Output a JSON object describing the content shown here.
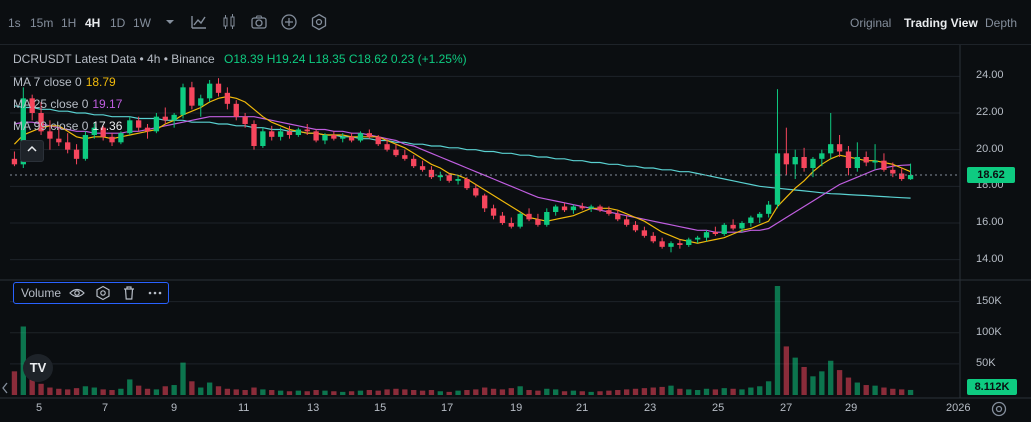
{
  "toolbar": {
    "timeframes": [
      {
        "label": "1s",
        "active": false
      },
      {
        "label": "15m",
        "active": false
      },
      {
        "label": "1H",
        "active": false
      },
      {
        "label": "4H",
        "active": true
      },
      {
        "label": "1D",
        "active": false
      },
      {
        "label": "1W",
        "active": false
      }
    ],
    "icons": [
      "chevron-down-icon",
      "indicator-icon",
      "candles-icon",
      "camera-icon",
      "add-icon",
      "settings-icon"
    ],
    "views": [
      {
        "label": "Original",
        "active": false
      },
      {
        "label": "Trading View",
        "active": true
      },
      {
        "label": "Depth",
        "active": false
      }
    ]
  },
  "legend": {
    "symbol": "DCRUSDT Latest Data",
    "interval": "4h",
    "exchange": "Binance",
    "ohlc": {
      "o_label": "O",
      "o": "18.39",
      "h_label": "H",
      "h": "19.24",
      "l_label": "L",
      "l": "18.35",
      "c_label": "C",
      "c": "18.62",
      "change": "0.23",
      "change_pct": "(+1.25%)"
    },
    "ma7": {
      "label": "MA 7 close 0",
      "value": "18.79",
      "color": "#f0b90b"
    },
    "ma25": {
      "label": "MA 25 close 0",
      "value": "19.17",
      "color": "#c05ee0"
    },
    "ma99": {
      "label": "MA 99 close 0",
      "value": "17.36",
      "color": "#5ad1d1"
    }
  },
  "volume_panel": {
    "label": "Volume"
  },
  "price_axis": {
    "ticks": [
      "24.00",
      "22.00",
      "20.00",
      "18.00",
      "16.00",
      "14.00"
    ],
    "current": "18.62"
  },
  "volume_axis": {
    "ticks": [
      "150K",
      "100K",
      "50K"
    ],
    "current": "8.112K"
  },
  "time_axis": {
    "ticks": [
      "5",
      "7",
      "9",
      "11",
      "13",
      "15",
      "17",
      "19",
      "21",
      "23",
      "25",
      "27",
      "29",
      "2026"
    ]
  },
  "logo": {
    "text": "TV"
  },
  "colors": {
    "up": "#0ecb81",
    "down": "#f6465d",
    "bg": "#0b0e11",
    "grid": "#1e2329"
  },
  "chart_data": {
    "type": "candlestick",
    "price_range": [
      13,
      25
    ],
    "volume_range": [
      0,
      175000
    ],
    "candles": [
      [
        19.5,
        19.9,
        19.1,
        19.2
      ],
      [
        19.2,
        23.4,
        19.0,
        22.8
      ],
      [
        22.8,
        23.0,
        21.6,
        22.0
      ],
      [
        22.0,
        22.6,
        20.8,
        21.0
      ],
      [
        21.0,
        21.6,
        20.0,
        20.6
      ],
      [
        20.6,
        21.2,
        20.2,
        20.4
      ],
      [
        20.4,
        20.9,
        19.8,
        20.0
      ],
      [
        20.0,
        20.3,
        19.2,
        19.5
      ],
      [
        19.5,
        21.0,
        19.4,
        20.8
      ],
      [
        20.8,
        21.5,
        20.6,
        21.2
      ],
      [
        21.2,
        21.3,
        20.5,
        20.7
      ],
      [
        20.7,
        20.9,
        20.2,
        20.4
      ],
      [
        20.4,
        21.0,
        20.3,
        20.9
      ],
      [
        20.9,
        21.8,
        20.8,
        21.6
      ],
      [
        21.6,
        21.8,
        21.0,
        21.2
      ],
      [
        21.2,
        21.4,
        20.6,
        21.0
      ],
      [
        21.0,
        22.0,
        20.9,
        21.8
      ],
      [
        21.8,
        22.3,
        21.4,
        21.6
      ],
      [
        21.6,
        22.0,
        21.2,
        21.9
      ],
      [
        21.9,
        23.6,
        21.7,
        23.4
      ],
      [
        23.4,
        23.7,
        22.2,
        22.4
      ],
      [
        22.4,
        23.0,
        21.8,
        22.8
      ],
      [
        22.8,
        23.8,
        22.6,
        23.6
      ],
      [
        23.6,
        23.9,
        22.9,
        23.1
      ],
      [
        23.1,
        23.4,
        22.2,
        22.5
      ],
      [
        22.5,
        22.7,
        21.6,
        21.8
      ],
      [
        21.8,
        22.0,
        21.2,
        21.4
      ],
      [
        21.4,
        21.6,
        20.0,
        20.2
      ],
      [
        20.2,
        21.2,
        20.1,
        21.0
      ],
      [
        21.0,
        21.3,
        20.5,
        20.7
      ],
      [
        20.7,
        21.2,
        20.5,
        21.0
      ],
      [
        21.0,
        21.3,
        20.6,
        20.8
      ],
      [
        20.8,
        21.2,
        20.7,
        21.1
      ],
      [
        21.1,
        21.4,
        20.8,
        21.0
      ],
      [
        21.0,
        21.1,
        20.4,
        20.5
      ],
      [
        20.5,
        20.9,
        20.3,
        20.8
      ],
      [
        20.8,
        21.0,
        20.5,
        20.6
      ],
      [
        20.6,
        20.9,
        20.4,
        20.7
      ],
      [
        20.7,
        20.9,
        20.4,
        20.5
      ],
      [
        20.5,
        21.0,
        20.4,
        20.9
      ],
      [
        20.9,
        21.1,
        20.6,
        20.7
      ],
      [
        20.7,
        20.8,
        20.2,
        20.3
      ],
      [
        20.3,
        20.6,
        19.9,
        20.0
      ],
      [
        20.0,
        20.3,
        19.6,
        19.7
      ],
      [
        19.7,
        20.0,
        19.4,
        19.5
      ],
      [
        19.5,
        19.7,
        19.0,
        19.1
      ],
      [
        19.1,
        19.4,
        18.8,
        18.9
      ],
      [
        18.9,
        19.1,
        18.4,
        18.5
      ],
      [
        18.5,
        18.8,
        18.3,
        18.6
      ],
      [
        18.6,
        18.7,
        18.2,
        18.3
      ],
      [
        18.3,
        18.6,
        18.1,
        18.4
      ],
      [
        18.4,
        18.5,
        17.8,
        17.9
      ],
      [
        17.9,
        18.1,
        17.4,
        17.5
      ],
      [
        17.5,
        17.6,
        16.6,
        16.8
      ],
      [
        16.8,
        17.0,
        16.2,
        16.4
      ],
      [
        16.4,
        16.6,
        15.9,
        16.0
      ],
      [
        16.0,
        16.3,
        15.7,
        15.8
      ],
      [
        15.8,
        16.6,
        15.7,
        16.5
      ],
      [
        16.5,
        16.8,
        16.1,
        16.2
      ],
      [
        16.2,
        16.5,
        15.8,
        15.9
      ],
      [
        15.9,
        16.8,
        15.8,
        16.6
      ],
      [
        16.6,
        17.0,
        16.4,
        16.9
      ],
      [
        16.9,
        17.1,
        16.6,
        16.7
      ],
      [
        16.7,
        17.0,
        16.5,
        16.9
      ],
      [
        16.9,
        17.1,
        16.7,
        16.8
      ],
      [
        16.8,
        17.0,
        16.6,
        16.9
      ],
      [
        16.9,
        17.0,
        16.6,
        16.7
      ],
      [
        16.7,
        16.9,
        16.4,
        16.5
      ],
      [
        16.5,
        16.7,
        16.1,
        16.2
      ],
      [
        16.2,
        16.4,
        15.8,
        15.9
      ],
      [
        15.9,
        16.1,
        15.5,
        15.6
      ],
      [
        15.6,
        15.8,
        15.2,
        15.3
      ],
      [
        15.3,
        15.5,
        14.9,
        15.0
      ],
      [
        15.0,
        15.2,
        14.6,
        14.7
      ],
      [
        14.7,
        15.0,
        14.4,
        14.9
      ],
      [
        14.9,
        15.1,
        14.6,
        14.8
      ],
      [
        14.8,
        15.2,
        14.7,
        15.1
      ],
      [
        15.1,
        15.3,
        14.9,
        15.2
      ],
      [
        15.2,
        15.6,
        15.0,
        15.5
      ],
      [
        15.5,
        15.8,
        15.3,
        15.4
      ],
      [
        15.4,
        16.0,
        15.3,
        15.9
      ],
      [
        15.9,
        16.2,
        15.6,
        15.7
      ],
      [
        15.7,
        16.1,
        15.5,
        16.0
      ],
      [
        16.0,
        16.4,
        15.8,
        16.3
      ],
      [
        16.3,
        16.6,
        16.0,
        16.5
      ],
      [
        16.5,
        17.2,
        16.3,
        17.0
      ],
      [
        17.0,
        23.3,
        16.8,
        19.8
      ],
      [
        19.8,
        21.2,
        18.6,
        19.2
      ],
      [
        19.2,
        20.0,
        18.4,
        19.6
      ],
      [
        19.6,
        20.1,
        18.8,
        19.0
      ],
      [
        19.0,
        19.6,
        18.5,
        19.5
      ],
      [
        19.5,
        20.0,
        19.1,
        19.8
      ],
      [
        19.8,
        22.0,
        19.5,
        20.3
      ],
      [
        20.3,
        20.8,
        19.6,
        19.9
      ],
      [
        19.9,
        20.2,
        18.6,
        19.0
      ],
      [
        19.0,
        20.4,
        18.8,
        19.6
      ],
      [
        19.6,
        19.9,
        19.1,
        19.3
      ],
      [
        19.3,
        20.3,
        18.9,
        19.4
      ],
      [
        19.4,
        19.8,
        18.8,
        18.9
      ],
      [
        18.9,
        19.3,
        18.5,
        18.7
      ],
      [
        18.7,
        19.0,
        18.3,
        18.4
      ],
      [
        18.39,
        19.24,
        18.35,
        18.62
      ]
    ],
    "volumes": [
      38000,
      110000,
      25000,
      18000,
      12000,
      10000,
      9000,
      11000,
      14000,
      12000,
      9000,
      8000,
      10000,
      25000,
      15000,
      10000,
      9000,
      14000,
      16000,
      52000,
      22000,
      12000,
      20000,
      14000,
      10000,
      9000,
      8000,
      12000,
      9000,
      8000,
      7000,
      6000,
      7000,
      6000,
      8000,
      7000,
      6000,
      5000,
      6000,
      7000,
      8000,
      7000,
      9000,
      10000,
      9000,
      8000,
      7000,
      8000,
      6000,
      5000,
      7000,
      8000,
      9000,
      12000,
      10000,
      9000,
      11000,
      14000,
      8000,
      7000,
      10000,
      9000,
      6000,
      7000,
      6000,
      5000,
      6000,
      7000,
      8000,
      9000,
      10000,
      11000,
      12000,
      13000,
      15000,
      10000,
      9000,
      8000,
      10000,
      9000,
      11000,
      10000,
      9000,
      12000,
      14000,
      22000,
      175000,
      78000,
      60000,
      45000,
      30000,
      38000,
      55000,
      40000,
      28000,
      20000,
      16000,
      15000,
      12000,
      10000,
      9000,
      8112
    ],
    "ma7": [
      20.3,
      20.8,
      21.0,
      21.2,
      21.3,
      21.3,
      21.0,
      20.7,
      20.6,
      20.7,
      20.7,
      20.6,
      20.7,
      20.8,
      20.9,
      21.0,
      21.1,
      21.4,
      21.6,
      21.9,
      22.1,
      22.3,
      22.6,
      22.8,
      22.9,
      22.8,
      22.6,
      22.2,
      21.8,
      21.5,
      21.3,
      21.1,
      21.0,
      20.9,
      20.9,
      20.8,
      20.8,
      20.8,
      20.7,
      20.7,
      20.7,
      20.7,
      20.5,
      20.3,
      20.1,
      19.8,
      19.5,
      19.2,
      19.0,
      18.7,
      18.6,
      18.4,
      18.1,
      17.8,
      17.5,
      17.2,
      16.9,
      16.6,
      16.3,
      16.2,
      16.1,
      16.2,
      16.3,
      16.4,
      16.6,
      16.8,
      16.8,
      16.8,
      16.7,
      16.5,
      16.3,
      16.1,
      15.8,
      15.5,
      15.3,
      15.1,
      15.0,
      14.9,
      15.0,
      15.1,
      15.2,
      15.4,
      15.6,
      15.7,
      15.9,
      16.1,
      16.9,
      17.4,
      17.9,
      18.3,
      18.8,
      19.2,
      19.5,
      19.7,
      19.6,
      19.5,
      19.4,
      19.4,
      19.3,
      19.2,
      19.0,
      18.8
    ],
    "ma25": [
      21.4,
      21.5,
      21.5,
      21.4,
      21.3,
      21.2,
      21.1,
      21.0,
      21.0,
      20.9,
      20.9,
      20.9,
      20.9,
      21.0,
      21.0,
      21.1,
      21.2,
      21.3,
      21.4,
      21.5,
      21.6,
      21.7,
      21.8,
      21.8,
      21.8,
      21.8,
      21.8,
      21.8,
      21.7,
      21.6,
      21.5,
      21.4,
      21.3,
      21.2,
      21.1,
      21.1,
      21.0,
      21.0,
      20.9,
      20.9,
      20.8,
      20.7,
      20.6,
      20.5,
      20.3,
      20.2,
      20.0,
      19.8,
      19.6,
      19.4,
      19.2,
      19.0,
      18.8,
      18.6,
      18.4,
      18.2,
      18.0,
      17.8,
      17.6,
      17.4,
      17.3,
      17.2,
      17.1,
      17.0,
      16.9,
      16.8,
      16.7,
      16.6,
      16.5,
      16.4,
      16.3,
      16.2,
      16.1,
      16.0,
      15.9,
      15.8,
      15.7,
      15.6,
      15.6,
      15.5,
      15.5,
      15.5,
      15.5,
      15.6,
      15.6,
      15.7,
      16.0,
      16.3,
      16.6,
      16.9,
      17.2,
      17.5,
      17.8,
      18.1,
      18.3,
      18.5,
      18.7,
      18.9,
      19.0,
      19.1,
      19.15,
      19.17
    ],
    "ma99": [
      22.4,
      22.3,
      22.3,
      22.2,
      22.2,
      22.1,
      22.1,
      22.0,
      22.0,
      21.9,
      21.9,
      21.8,
      21.8,
      21.8,
      21.7,
      21.7,
      21.7,
      21.6,
      21.6,
      21.6,
      21.5,
      21.5,
      21.5,
      21.4,
      21.4,
      21.3,
      21.3,
      21.2,
      21.2,
      21.1,
      21.1,
      21.0,
      21.0,
      20.9,
      20.9,
      20.8,
      20.8,
      20.7,
      20.7,
      20.6,
      20.6,
      20.5,
      20.5,
      20.4,
      20.4,
      20.3,
      20.3,
      20.2,
      20.2,
      20.1,
      20.1,
      20.0,
      20.0,
      19.9,
      19.9,
      19.8,
      19.8,
      19.7,
      19.7,
      19.6,
      19.6,
      19.5,
      19.5,
      19.4,
      19.4,
      19.3,
      19.3,
      19.2,
      19.2,
      19.1,
      19.1,
      19.0,
      19.0,
      18.9,
      18.9,
      18.8,
      18.8,
      18.7,
      18.6,
      18.5,
      18.4,
      18.3,
      18.2,
      18.1,
      18.0,
      17.95,
      17.9,
      17.85,
      17.8,
      17.75,
      17.7,
      17.65,
      17.6,
      17.58,
      17.55,
      17.52,
      17.5,
      17.47,
      17.44,
      17.41,
      17.38,
      17.36
    ]
  }
}
